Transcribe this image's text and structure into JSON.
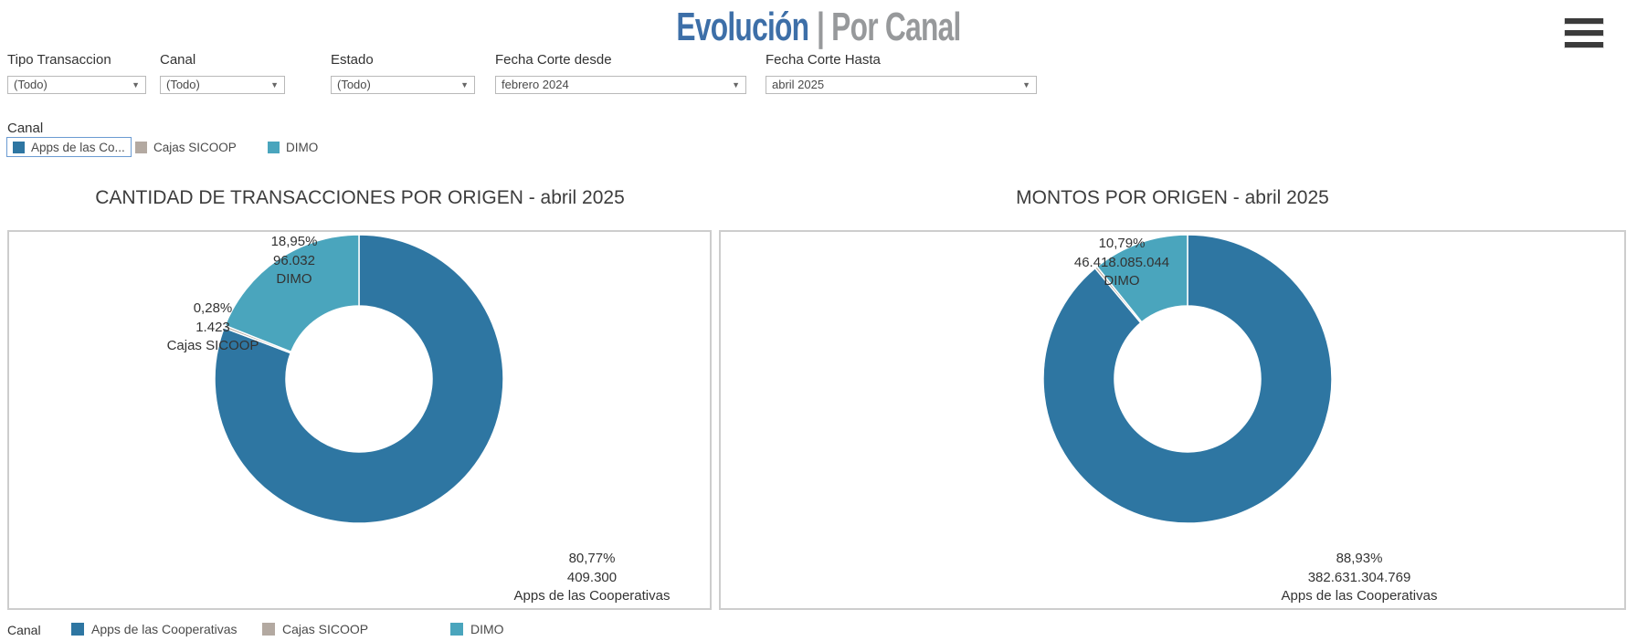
{
  "header": {
    "title_primary": "Evolución",
    "title_secondary": "| Por Canal",
    "menu_icon": "hamburger-menu-icon"
  },
  "colors": {
    "title_primary": "#3d6fa8",
    "title_secondary": "#97999b",
    "apps_blue": "#2e76a2",
    "cajas_taupe": "#b3a9a1",
    "dimo_teal": "#4aa5bd",
    "selected_legend_border": "#6b9bd2"
  },
  "filters": [
    {
      "label": "Tipo Transaccion",
      "value": "(Todo)"
    },
    {
      "label": "Canal",
      "value": "(Todo)"
    },
    {
      "label": "Estado",
      "value": "(Todo)"
    },
    {
      "label": "Fecha Corte desde",
      "value": "febrero 2024"
    },
    {
      "label": "Fecha Corte Hasta",
      "value": "abril 2025"
    }
  ],
  "legend_top": {
    "title": "Canal",
    "items": [
      {
        "label": "Apps de las Co...",
        "color": "#2e76a2",
        "selected": true
      },
      {
        "label": "Cajas SICOOP",
        "color": "#b3a9a1",
        "selected": false
      },
      {
        "label": "DIMO",
        "color": "#4aa5bd",
        "selected": false
      }
    ]
  },
  "legend_bottom": {
    "title": "Canal",
    "items": [
      {
        "label": "Apps de las Cooperativas",
        "color": "#2e76a2"
      },
      {
        "label": "Cajas SICOOP",
        "color": "#b3a9a1"
      },
      {
        "label": "DIMO",
        "color": "#4aa5bd"
      }
    ]
  },
  "chart_data": [
    {
      "type": "pie",
      "donut": true,
      "title": "CANTIDAD DE TRANSACCIONES POR ORIGEN - abril 2025",
      "legend_title": "Canal",
      "direction": "clockwise",
      "start_angle": "12 o'clock",
      "slices": [
        {
          "name": "Apps de las Cooperativas",
          "pct": 80.77,
          "value": 409300,
          "pct_label": "80,77%",
          "value_label": "409.300",
          "color": "#2e76a2"
        },
        {
          "name": "Cajas SICOOP",
          "pct": 0.28,
          "value": 1423,
          "pct_label": "0,28%",
          "value_label": "1.423",
          "color": "#b3a9a1"
        },
        {
          "name": "DIMO",
          "pct": 18.95,
          "value": 96032,
          "pct_label": "18,95%",
          "value_label": "96.032",
          "color": "#4aa5bd"
        }
      ]
    },
    {
      "type": "pie",
      "donut": true,
      "title": "MONTOS POR ORIGEN -  abril 2025",
      "legend_title": "Canal",
      "direction": "clockwise",
      "start_angle": "12 o'clock",
      "slices": [
        {
          "name": "Apps de las Cooperativas",
          "pct": 88.93,
          "value": 382631304769,
          "pct_label": "88,93%",
          "value_label": "382.631.304.769",
          "color": "#2e76a2"
        },
        {
          "name": "Cajas SICOOP",
          "pct": 0.28,
          "color": "#b3a9a1"
        },
        {
          "name": "DIMO",
          "pct": 10.79,
          "value": 46418085044,
          "pct_label": "10,79%",
          "value_label": "46.418.085.044",
          "color": "#4aa5bd"
        }
      ]
    }
  ]
}
